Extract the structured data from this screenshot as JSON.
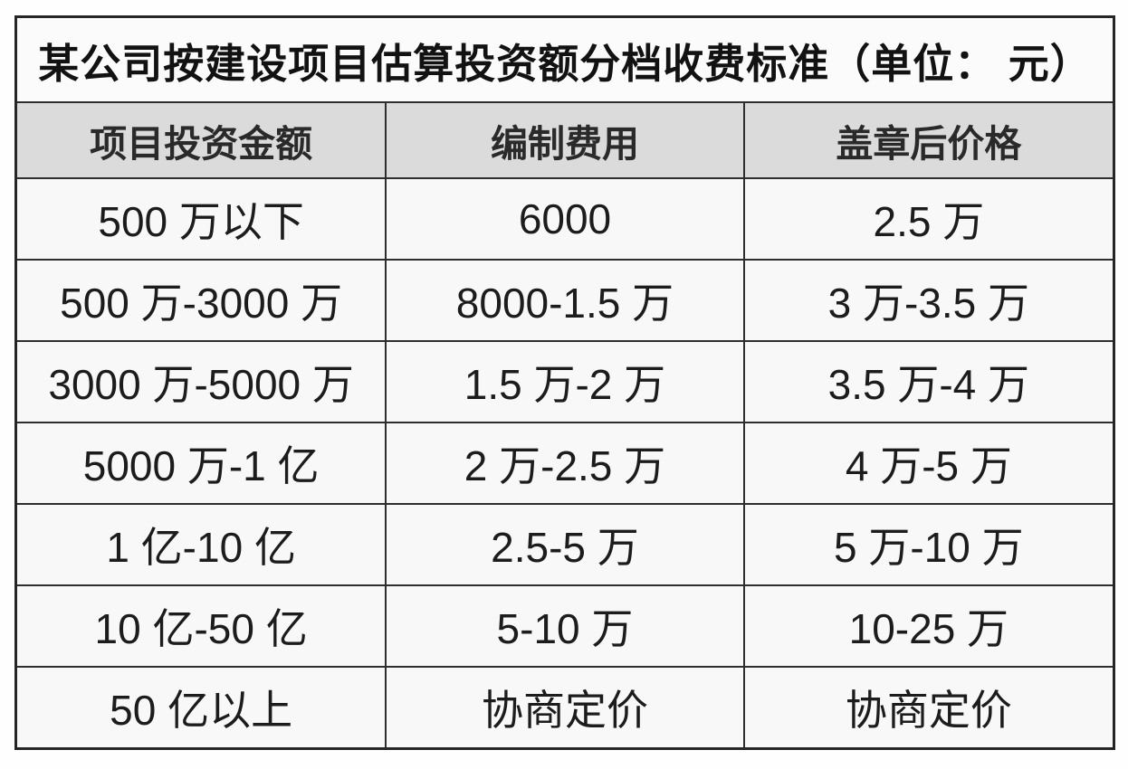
{
  "table": {
    "title": "某公司按建设项目估算投资额分档收费标准（单位： 元）",
    "columns": [
      "项目投资金额",
      "编制费用",
      "盖章后价格"
    ],
    "rows": [
      [
        "500 万以下",
        "6000",
        "2.5 万"
      ],
      [
        "500 万-3000 万",
        "8000-1.5 万",
        "3 万-3.5 万"
      ],
      [
        "3000 万-5000 万",
        "1.5 万-2 万",
        "3.5 万-4 万"
      ],
      [
        "5000 万-1 亿",
        "2 万-2.5 万",
        "4 万-5 万"
      ],
      [
        "1 亿-10 亿",
        "2.5-5 万",
        "5 万-10 万"
      ],
      [
        "10 亿-50 亿",
        "5-10 万",
        "10-25 万"
      ],
      [
        "50 亿以上",
        "协商定价",
        "协商定价"
      ]
    ]
  },
  "colors": {
    "header_bg": "#dbdbdb",
    "row_bg": "#f8f8f8",
    "border": "#2e2e2e",
    "text": "#1c1c1c"
  },
  "chart_data": {
    "type": "table",
    "title": "某公司按建设项目估算投资额分档收费标准（单位：元）",
    "columns": [
      "项目投资金额",
      "编制费用",
      "盖章后价格"
    ],
    "rows": [
      [
        "500 万以下",
        "6000",
        "2.5 万"
      ],
      [
        "500 万-3000 万",
        "8000-1.5 万",
        "3 万-3.5 万"
      ],
      [
        "3000 万-5000 万",
        "1.5 万-2 万",
        "3.5 万-4 万"
      ],
      [
        "5000 万-1 亿",
        "2 万-2.5 万",
        "4 万-5 万"
      ],
      [
        "1 亿-10 亿",
        "2.5-5 万",
        "5 万-10 万"
      ],
      [
        "10 亿-50 亿",
        "5-10 万",
        "10-25 万"
      ],
      [
        "50 亿以上",
        "协商定价",
        "协商定价"
      ]
    ]
  }
}
